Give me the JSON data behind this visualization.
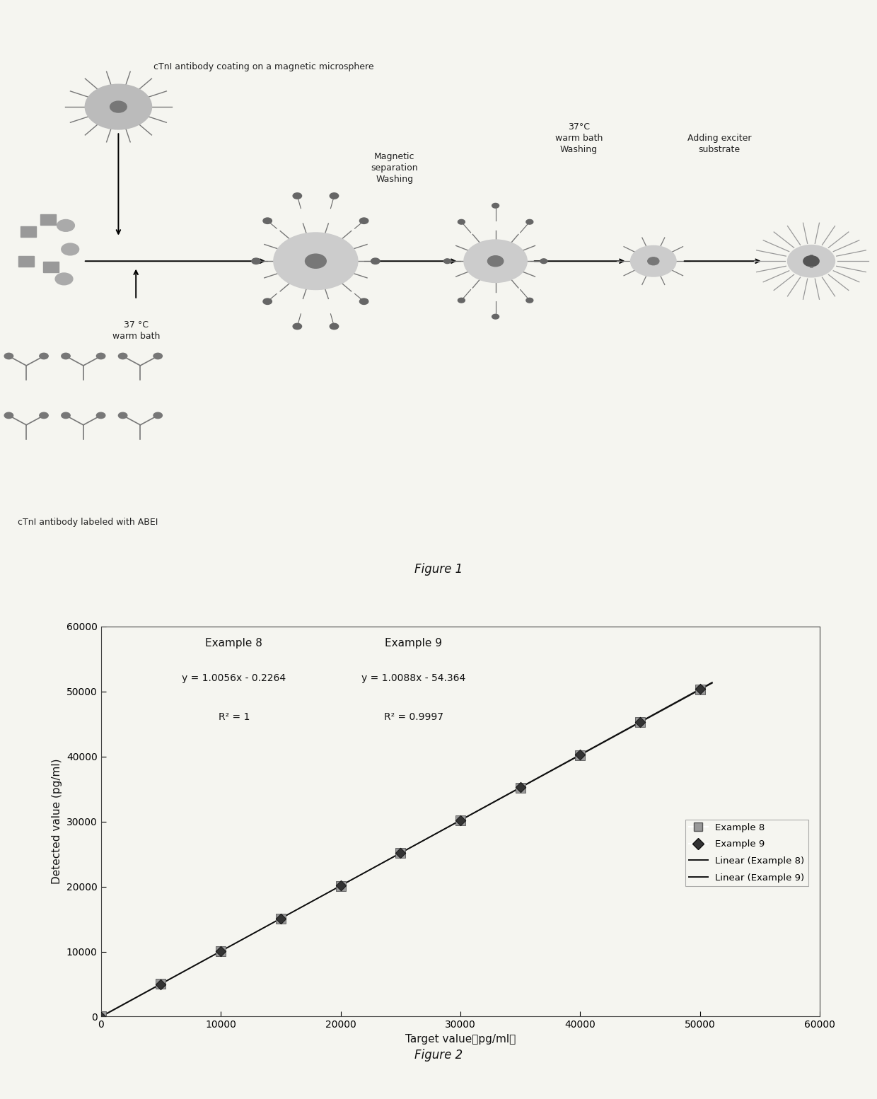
{
  "fig1_caption": "Figure 1",
  "fig2_caption": "Figure 2",
  "fig1_labels": {
    "top_label": "cTnI antibody coating on a magnetic microsphere",
    "bottom_label": "cTnI antibody labeled with ABEI",
    "step1_line1": "37 °C",
    "step1_line2": "warm bath",
    "step2_line1": "Magnetic",
    "step2_line2": "separation",
    "step2_line3": "Washing",
    "step3_line1": "37°C",
    "step3_line2": "warm bath",
    "step3_line3": "Washing",
    "step4_line1": "Adding exciter",
    "step4_line2": "substrate"
  },
  "ex8_eq": "y = 1.0056x - 0.2264",
  "ex8_r2": "R² = 1",
  "ex9_eq": "y = 1.0088x - 54.364",
  "ex9_r2": "R² = 0.9997",
  "ex8_label": "Example 8",
  "ex9_label": "Example 9",
  "lin8_label": "Linear (Example 8)",
  "lin9_label": "Linear (Example 9)",
  "xlabel": "Target value（pg/ml）",
  "ylabel": "Detected value (pg/ml)",
  "xlim": [
    0,
    60000
  ],
  "ylim": [
    0,
    60000
  ],
  "xticks": [
    0,
    10000,
    20000,
    30000,
    40000,
    50000,
    60000
  ],
  "yticks": [
    0,
    10000,
    20000,
    30000,
    40000,
    50000,
    60000
  ],
  "marker8_color": "#999999",
  "marker9_color": "#333333",
  "line_color": "#111111",
  "bg_color": "#f5f5f0",
  "text_color": "#111111",
  "font_size_label": 11,
  "font_size_tick": 10,
  "font_size_caption": 12,
  "font_size_eq": 11
}
